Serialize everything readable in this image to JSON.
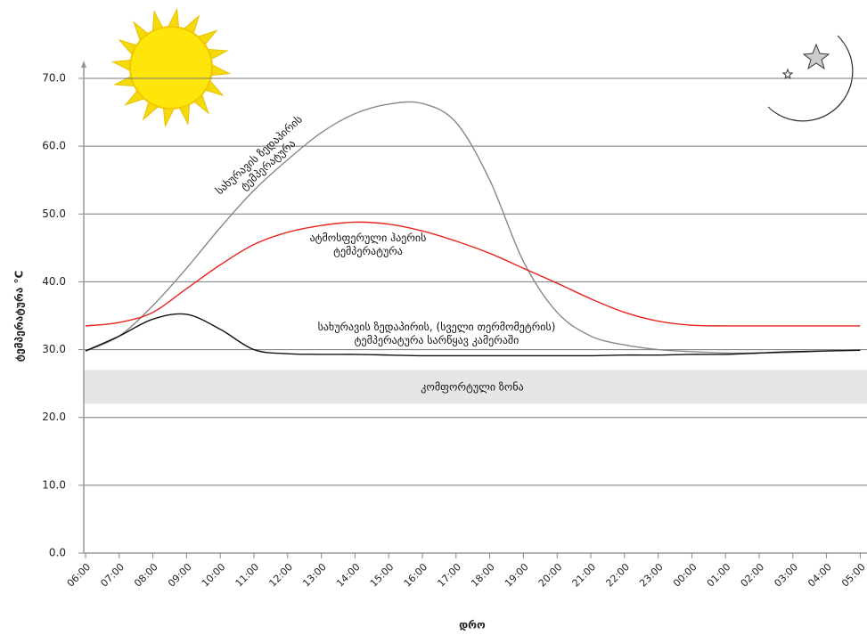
{
  "chart_data": {
    "type": "line",
    "x_label": "დრო",
    "y_label": "ტემპერატურა  °C",
    "categories": [
      "06:00",
      "07:00",
      "08:00",
      "09:00",
      "10:00",
      "11:00",
      "12:00",
      "13:00",
      "14:00",
      "15:00",
      "16:00",
      "17:00",
      "18:00",
      "19:00",
      "20:00",
      "21:00",
      "22:00",
      "23:00",
      "00:00",
      "01:00",
      "02:00",
      "03:00",
      "04:00",
      "05:00"
    ],
    "series": [
      {
        "name": "სახურავის ზედაპირის\nტემპერატურა",
        "color": "#888888",
        "values": [
          29.8,
          32,
          36.5,
          42,
          48,
          53.5,
          58,
          62,
          64.8,
          66.2,
          66.3,
          63.5,
          55,
          43,
          35.5,
          32,
          30.7,
          30,
          29.7,
          29.5,
          29.5,
          29.6,
          29.8,
          30
        ]
      },
      {
        "name": "ატმოსფერული ჰაერის\nტემპერატურა",
        "color": "#e8251e",
        "values": [
          33.5,
          34,
          35.5,
          39,
          42.5,
          45.5,
          47.3,
          48.3,
          48.8,
          48.5,
          47.5,
          46,
          44.2,
          42,
          39.8,
          37.5,
          35.5,
          34.2,
          33.6,
          33.5,
          33.5,
          33.5,
          33.5,
          33.5
        ]
      },
      {
        "name": "სახურავის ზედაპირის, (სველი თერმომეტრის)\nტემპერატურა სარწყავ კამერაში",
        "color": "#111111",
        "values": [
          29.8,
          32,
          34.5,
          35.2,
          33,
          30,
          29.4,
          29.3,
          29.3,
          29.2,
          29.1,
          29.1,
          29.1,
          29.1,
          29.1,
          29.1,
          29.2,
          29.2,
          29.3,
          29.3,
          29.5,
          29.7,
          29.8,
          29.9
        ]
      }
    ],
    "comfort_zone": {
      "label": "კომფორტული ზონა",
      "range": [
        22,
        27
      ],
      "color": "#e6e6e6"
    },
    "ylim": [
      0,
      70
    ],
    "yticks": [
      {
        "value": 0,
        "label": "0.0"
      },
      {
        "value": 10,
        "label": "10.0"
      },
      {
        "value": 20,
        "label": "20.0"
      },
      {
        "value": 30,
        "label": "30.0"
      },
      {
        "value": 40,
        "label": "40.0"
      },
      {
        "value": 50,
        "label": "50.0"
      },
      {
        "value": 60,
        "label": "60.0"
      },
      {
        "value": 70,
        "label": "70.0"
      }
    ],
    "grid": true
  }
}
